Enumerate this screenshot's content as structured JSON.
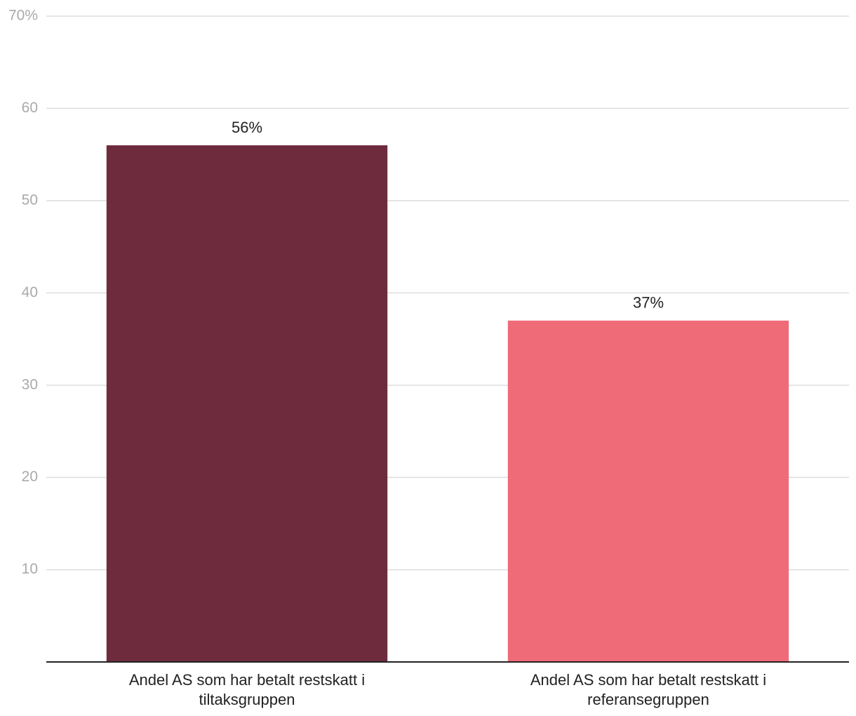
{
  "chart_data": {
    "type": "bar",
    "categories": [
      "Andel AS som har betalt restskatt i tiltaksgruppen",
      "Andel AS som har betalt restskatt i referansegruppen"
    ],
    "values": [
      56,
      37
    ],
    "value_labels": [
      "56%",
      "37%"
    ],
    "colors": [
      "#6e2b3e",
      "#ef6b78"
    ],
    "ylim": [
      0,
      70
    ],
    "yticks": [
      10,
      20,
      30,
      40,
      50,
      60,
      {
        "value": 70,
        "label": "70%"
      }
    ],
    "grid": true
  }
}
